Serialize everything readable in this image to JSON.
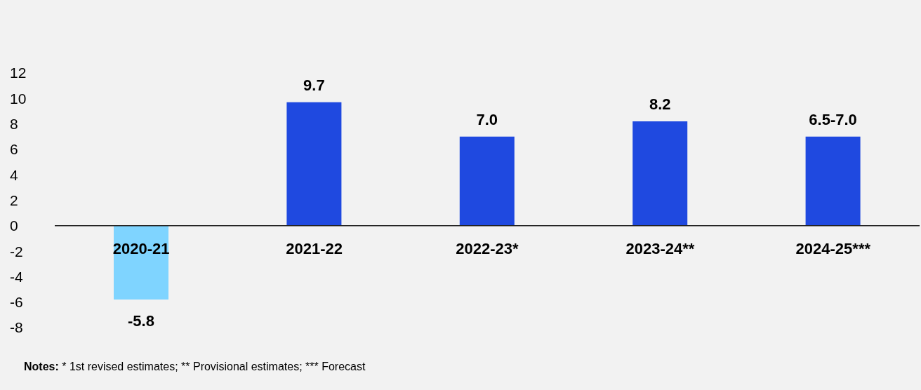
{
  "chart_data": {
    "type": "bar",
    "categories": [
      "2020-21",
      "2021-22",
      "2022-23*",
      "2023-24**",
      "2024-25***"
    ],
    "values": [
      -5.8,
      9.7,
      7.0,
      8.2,
      7.0
    ],
    "colors": [
      "#7fd4ff",
      "#1f49e0",
      "#1f49e0",
      "#1f49e0",
      "#1f49e0"
    ],
    "value_labels": [
      "-5.8",
      "9.7",
      "7.0",
      "8.2",
      "6.5-7.0"
    ],
    "ylim": [
      -8,
      12
    ],
    "yticks": [
      -8,
      -6,
      -4,
      -2,
      0,
      2,
      4,
      6,
      8,
      10,
      12
    ],
    "annotations": [
      "Notes: * 1st revised estimates; ** Provisional estimates; *** Forecast"
    ]
  }
}
